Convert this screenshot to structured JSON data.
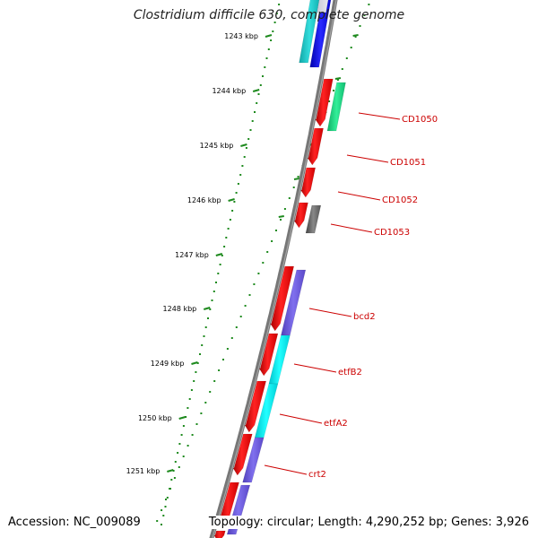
{
  "title": "Clostridium difficile 630, complete genome",
  "accession_text": "Accession: NC_009089",
  "topology_text": "Topology: circular; Length: 4,290,252 bp; Genes: 3,926",
  "kbp_labels": [
    "1243 kbp",
    "1244 kbp",
    "1245 kbp",
    "1246 kbp",
    "1247 kbp",
    "1248 kbp",
    "1249 kbp",
    "1250 kbp",
    "1251 kbp"
  ],
  "gene_labels": [
    "CD1050",
    "CD1051",
    "CD1052",
    "CD1053",
    "bcd2",
    "etfB2",
    "etfA2",
    "crt2"
  ],
  "colors": {
    "backbone": "#777777",
    "tick_ring": "#1e8a1e",
    "label": "#cc0000",
    "forward": "#ee1111",
    "blue": "#1010ee",
    "cyan": "#18c8c8",
    "bright_cyan": "#00e8ee",
    "green": "#22dd88",
    "purple": "#7060dd",
    "gray": "#666666"
  }
}
